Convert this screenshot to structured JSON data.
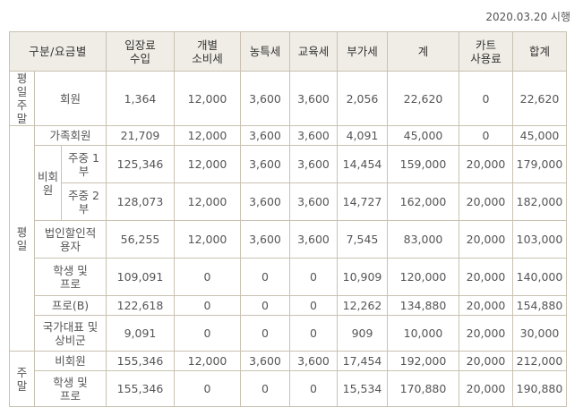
{
  "effective_date": "2020.03.20 시행",
  "headers": {
    "category": "구분/요금별",
    "admission": "입장료\n수입",
    "excise": "개별\n소비세",
    "special": "농특세",
    "education": "교육세",
    "vat": "부가세",
    "subtotal": "계",
    "cart": "카트\n사용료",
    "total": "합계"
  },
  "groups": {
    "weekday_weekend": "평일\n주말",
    "weekday": "평일",
    "non_member": "비회\n원",
    "weekend": "주말"
  },
  "rows": [
    {
      "label": "회원",
      "admission": "1,364",
      "excise": "12,000",
      "special": "3,600",
      "education": "3,600",
      "vat": "2,056",
      "subtotal": "22,620",
      "cart": "0",
      "total": "22,620"
    },
    {
      "label": "가족회원",
      "admission": "21,709",
      "excise": "12,000",
      "special": "3,600",
      "education": "3,600",
      "vat": "4,091",
      "subtotal": "45,000",
      "cart": "0",
      "total": "45,000"
    },
    {
      "label": "주중 1\n부",
      "admission": "125,346",
      "excise": "12,000",
      "special": "3,600",
      "education": "3,600",
      "vat": "14,454",
      "subtotal": "159,000",
      "cart": "20,000",
      "total": "179,000"
    },
    {
      "label": "주중 2\n부",
      "admission": "128,073",
      "excise": "12,000",
      "special": "3,600",
      "education": "3,600",
      "vat": "14,727",
      "subtotal": "162,000",
      "cart": "20,000",
      "total": "182,000"
    },
    {
      "label": "법인할인적\n용자",
      "admission": "56,255",
      "excise": "12,000",
      "special": "3,600",
      "education": "3,600",
      "vat": "7,545",
      "subtotal": "83,000",
      "cart": "20,000",
      "total": "103,000"
    },
    {
      "label": "학생 및\n프로",
      "admission": "109,091",
      "excise": "0",
      "special": "0",
      "education": "0",
      "vat": "10,909",
      "subtotal": "120,000",
      "cart": "20,000",
      "total": "140,000"
    },
    {
      "label": "프로(B)",
      "admission": "122,618",
      "excise": "0",
      "special": "0",
      "education": "0",
      "vat": "12,262",
      "subtotal": "134,880",
      "cart": "20,000",
      "total": "154,880"
    },
    {
      "label": "국가대표 및\n상비군",
      "admission": "9,091",
      "excise": "0",
      "special": "0",
      "education": "0",
      "vat": "909",
      "subtotal": "10,000",
      "cart": "20,000",
      "total": "30,000"
    },
    {
      "label": "비회원",
      "admission": "155,346",
      "excise": "12,000",
      "special": "3,600",
      "education": "3,600",
      "vat": "17,454",
      "subtotal": "192,000",
      "cart": "20,000",
      "total": "212,000"
    },
    {
      "label": "학생 및\n프로",
      "admission": "155,346",
      "excise": "0",
      "special": "0",
      "education": "0",
      "vat": "15,534",
      "subtotal": "170,880",
      "cart": "20,000",
      "total": "190,880"
    }
  ]
}
